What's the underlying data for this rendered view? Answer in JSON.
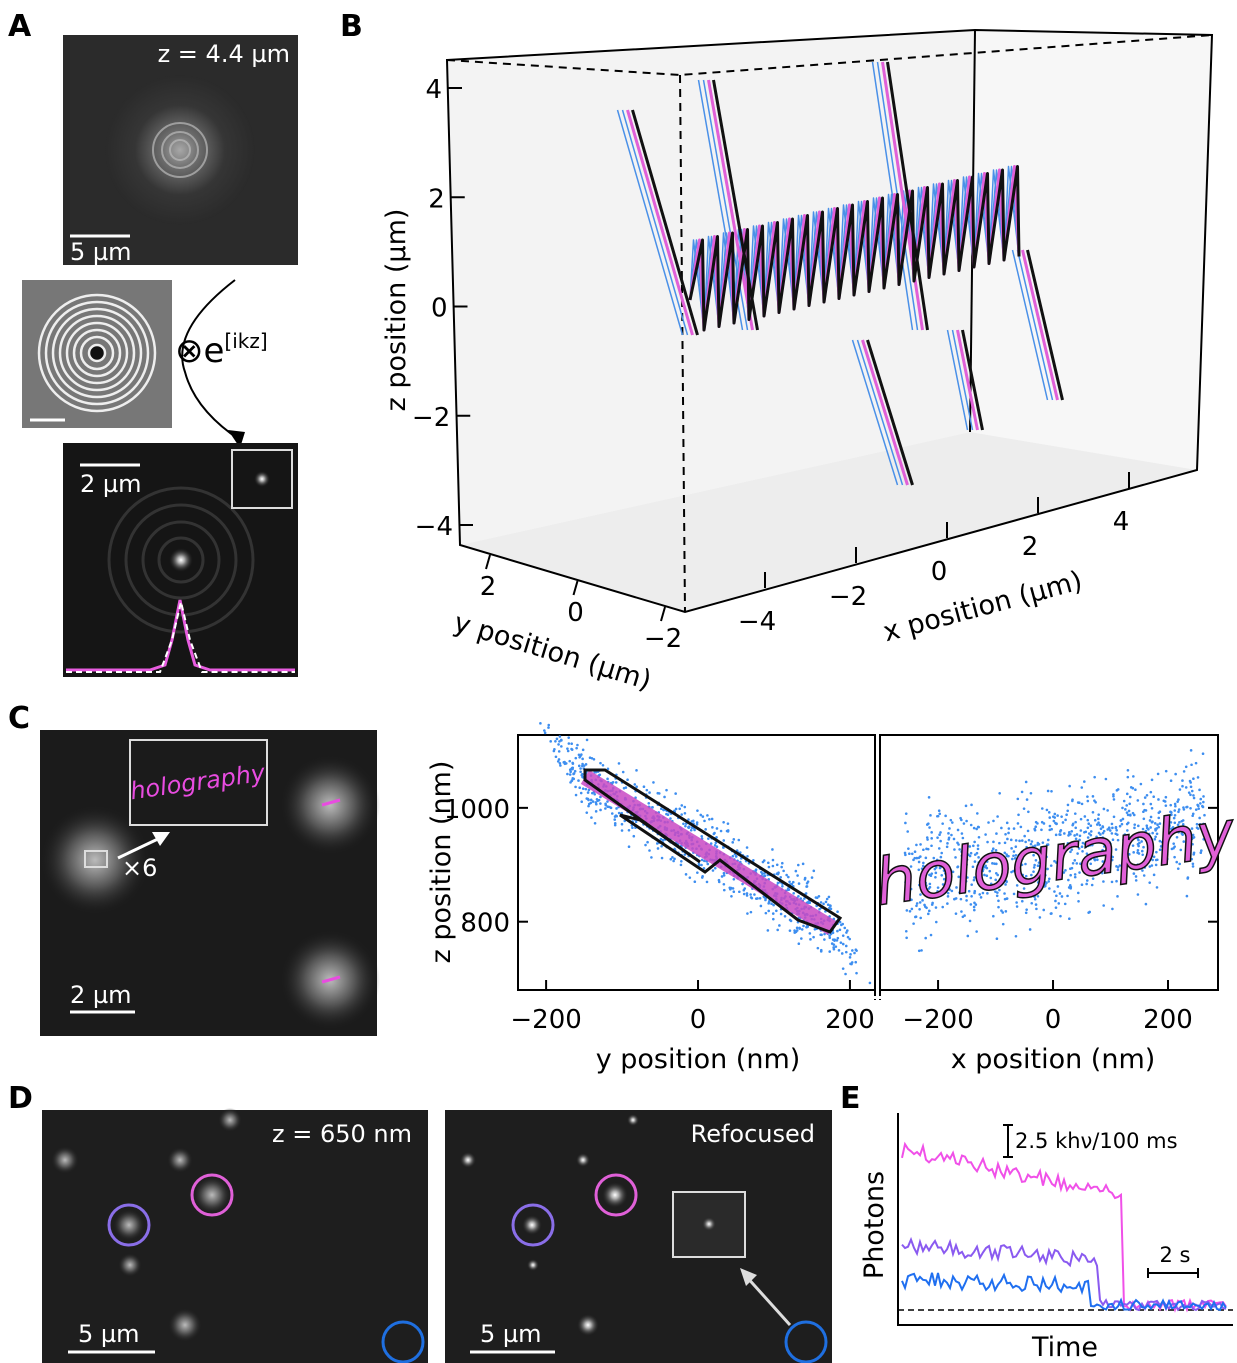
{
  "panels": {
    "A": {
      "label": "A",
      "z_label": "z = 4.4 µm",
      "scale_top": "5 µm",
      "operator": "⊗e",
      "operator_sup": "[ikz]",
      "scale_bottom": "2 µm"
    },
    "B": {
      "label": "B",
      "z_axis_label": "z position (µm)",
      "zticks": [
        4,
        2,
        0,
        {
          "value": -2,
          "label": "−2"
        },
        {
          "value": -4,
          "label": "−4"
        }
      ],
      "y_axis_label": "y position (µm)",
      "yticks": [
        2,
        0,
        {
          "value": -2,
          "label": "−2"
        }
      ],
      "x_axis_label": "x position (µm)",
      "xticks": [
        {
          "value": -4,
          "label": "−4"
        },
        {
          "value": -2,
          "label": "−2"
        },
        0,
        2,
        4
      ]
    },
    "C": {
      "label": "C",
      "inset_text": "holography",
      "magnification": "×6",
      "scale": "2 µm",
      "ylabel": "z position (nm)",
      "ylim": [
        680,
        1128
      ],
      "yticks": [
        800,
        1000
      ],
      "left_xlabel": "y position (nm)",
      "left_xlim": [
        -237,
        233
      ],
      "left_xticks": [
        {
          "value": -200,
          "label": "−200"
        },
        0,
        200
      ],
      "right_xlabel": "x position (nm)",
      "right_xlim": [
        -301,
        287
      ],
      "right_xticks": [
        {
          "value": -200,
          "label": "−200"
        },
        0,
        200
      ]
    },
    "D": {
      "label": "D",
      "left_title": "z = 650 nm",
      "right_title": "Refocused",
      "scale": "5 µm"
    },
    "E": {
      "label": "E",
      "scale_y": "2.5 khν/100 ms",
      "scale_x": "2 s",
      "ylabel": "Photons",
      "xlabel": "Time"
    }
  }
}
